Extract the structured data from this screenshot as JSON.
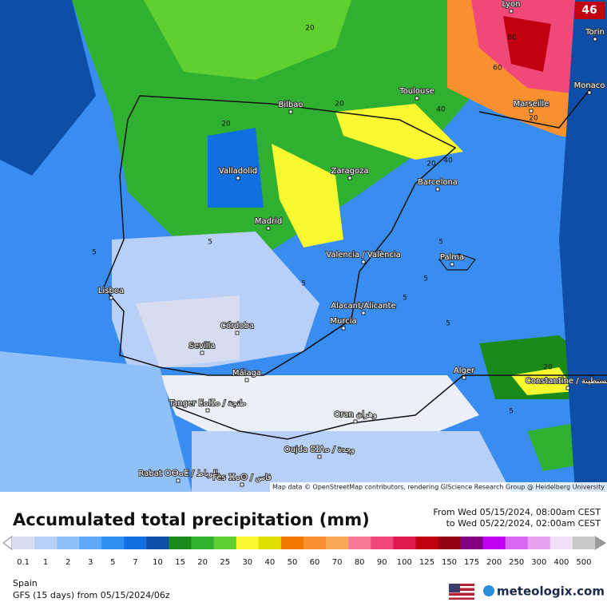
{
  "map": {
    "badge": "46",
    "attribution": "Map data © OpenStreetMap contributors, rendering GIScience Research Group @ Heidelberg University",
    "cities": [
      "Lyon",
      "Torin",
      "Monaco",
      "Marseille",
      "Toulouse",
      "Bilbao",
      "Valladolid",
      "Zaragoza",
      "Barcelona",
      "Madrid",
      "Valencia / València",
      "Palma",
      "Lisboa",
      "Alacant/Alicante",
      "Murcia",
      "Córdoba",
      "Sevilla",
      "Málaga",
      "Alger",
      "Constantine / قسنطينة",
      "Tanger ⵟⴰⵏⵊⴰ / طنجة",
      "Oran وهران",
      "Oujda ⵓⵊⴷⴰ / وجدة",
      "Rabat ⵔⴱⴰⵟ / الرباط",
      "Fès ⴼⴰⵙ / فاس"
    ],
    "contour_labels": [
      "20",
      "20",
      "20",
      "20",
      "20",
      "20",
      "40",
      "40",
      "60",
      "80",
      "5",
      "5",
      "5",
      "5",
      "5",
      "5",
      "5",
      "5"
    ]
  },
  "title": "Accumulated total precipitation (mm)",
  "period": [
    "From Wed 05/15/2024, 08:00am CEST",
    "to Wed 05/22/2024, 02:00am CEST"
  ],
  "legend": {
    "ticks": [
      "0.1",
      "1",
      "2",
      "3",
      "5",
      "7",
      "10",
      "15",
      "20",
      "25",
      "30",
      "40",
      "50",
      "60",
      "70",
      "80",
      "90",
      "100",
      "125",
      "150",
      "175",
      "200",
      "250",
      "300",
      "400",
      "500"
    ],
    "colors": [
      "#d8dcf0",
      "#b8d0f8",
      "#90c0f8",
      "#60a8f8",
      "#3090f0",
      "#1070e0",
      "#0d4fa8",
      "#1a8a1a",
      "#30b030",
      "#60d030",
      "#f8f830",
      "#e0e000",
      "#f07800",
      "#f89030",
      "#f8a858",
      "#f87898",
      "#f04878",
      "#e01850",
      "#c00010",
      "#900010",
      "#800080",
      "#c000f0",
      "#d868f0",
      "#e8a0f0",
      "#f0e0f8",
      "#c8c8c8"
    ]
  },
  "footer": {
    "region": "Spain",
    "model": "GFS (15 days) from 05/15/2024/06z",
    "brand": "meteologix.com"
  }
}
